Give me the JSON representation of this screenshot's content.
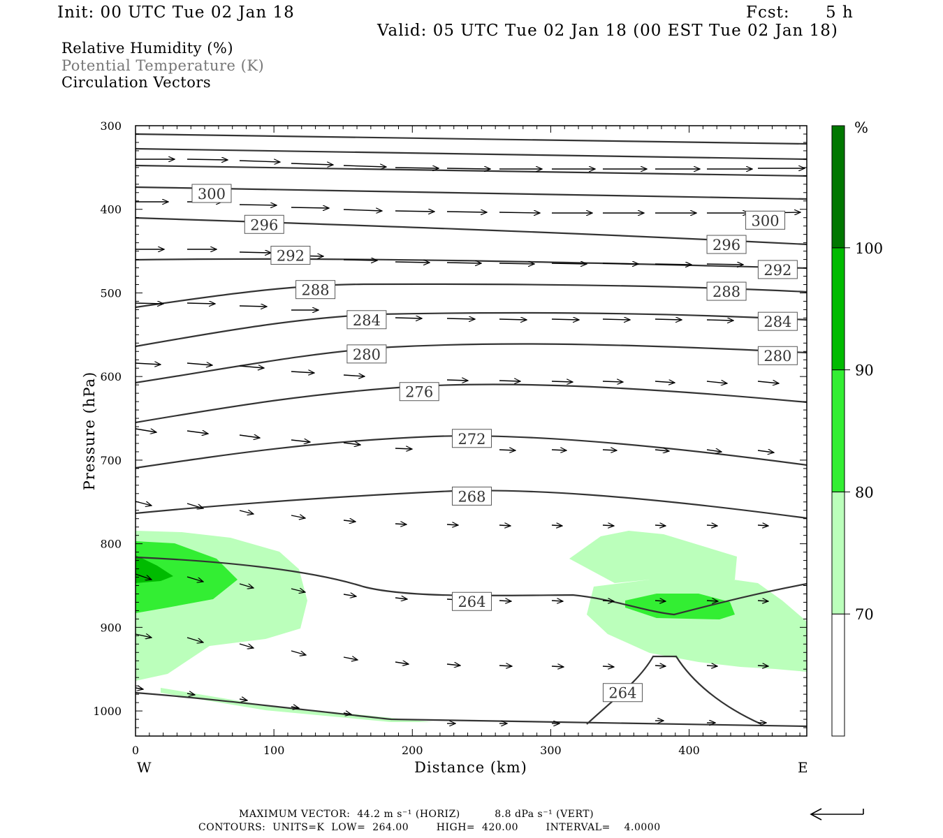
{
  "header": {
    "init": "Init: 00 UTC Tue 02 Jan 18",
    "fcst_label": "Fcst:",
    "fcst_value": "5 h",
    "valid": "Valid: 05 UTC Tue 02 Jan 18 (00 EST Tue 02 Jan 18)"
  },
  "fields": [
    {
      "label": "Relative Humidity (%)",
      "color": "#000000"
    },
    {
      "label": "Potential Temperature (K)",
      "color": "#777777"
    },
    {
      "label": "Circulation Vectors",
      "color": "#000000"
    }
  ],
  "footer": {
    "max_vector": "MAXIMUM VECTOR:  44.2 m s⁻¹ (HORIZ)          8.8 dPa s⁻¹ (VERT)",
    "contours": "CONTOURS:  UNITS=K  LOW=  264.00        HIGH=  420.00        INTERVAL=    4.0000"
  },
  "chart_data": {
    "type": "cross-section",
    "title": "",
    "xlabel": "Distance (km)",
    "ylabel": "Pressure (hPa)",
    "xlim": [
      0,
      485
    ],
    "ylim": [
      1030,
      300
    ],
    "x_ticks": [
      "0",
      "100",
      "200",
      "300",
      "400"
    ],
    "x_tick_values": [
      0,
      100,
      200,
      300,
      400
    ],
    "y_ticks": [
      "300",
      "400",
      "500",
      "600",
      "700",
      "800",
      "900",
      "1000"
    ],
    "y_tick_values": [
      300,
      400,
      500,
      600,
      700,
      800,
      900,
      1000
    ],
    "x_end_labels": {
      "left": "W",
      "right": "E"
    },
    "colorbar": {
      "unit": "%",
      "levels": [
        "70",
        "80",
        "90",
        "100"
      ],
      "colors": [
        "#ffffff",
        "#bbffbb",
        "#33ee33",
        "#00bb00",
        "#007700"
      ]
    },
    "theta_labels": [
      {
        "text": "300",
        "x": 55,
        "p": 381
      },
      {
        "text": "296",
        "x": 93,
        "p": 418
      },
      {
        "text": "292",
        "x": 112,
        "p": 455
      },
      {
        "text": "288",
        "x": 130,
        "p": 496
      },
      {
        "text": "284",
        "x": 167,
        "p": 532
      },
      {
        "text": "280",
        "x": 167,
        "p": 573
      },
      {
        "text": "276",
        "x": 205,
        "p": 618
      },
      {
        "text": "272",
        "x": 243,
        "p": 674
      },
      {
        "text": "268",
        "x": 243,
        "p": 743
      },
      {
        "text": "264",
        "x": 243,
        "p": 869
      },
      {
        "text": "264",
        "x": 352,
        "p": 978
      },
      {
        "text": "300",
        "x": 455,
        "p": 413
      },
      {
        "text": "296",
        "x": 427,
        "p": 442
      },
      {
        "text": "292",
        "x": 464,
        "p": 472
      },
      {
        "text": "288",
        "x": 427,
        "p": 498
      },
      {
        "text": "284",
        "x": 464,
        "p": 534
      },
      {
        "text": "280",
        "x": 464,
        "p": 575
      }
    ]
  }
}
